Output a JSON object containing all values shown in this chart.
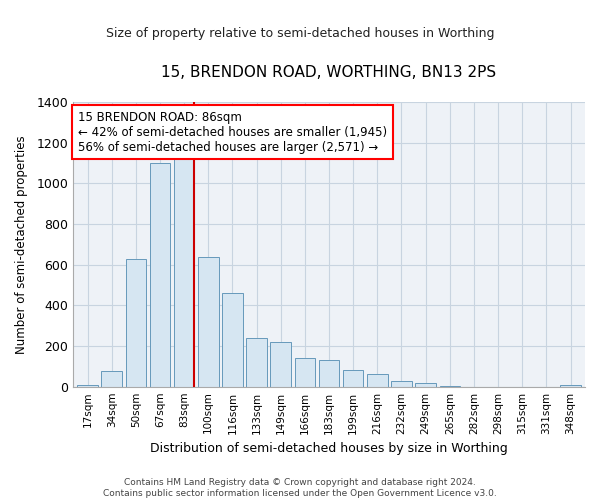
{
  "title": "15, BRENDON ROAD, WORTHING, BN13 2PS",
  "subtitle": "Size of property relative to semi-detached houses in Worthing",
  "xlabel": "Distribution of semi-detached houses by size in Worthing",
  "ylabel": "Number of semi-detached properties",
  "footer_line1": "Contains HM Land Registry data © Crown copyright and database right 2024.",
  "footer_line2": "Contains public sector information licensed under the Open Government Licence v3.0.",
  "property_label": "15 BRENDON ROAD: 86sqm",
  "annotation_line1": "← 42% of semi-detached houses are smaller (1,945)",
  "annotation_line2": "56% of semi-detached houses are larger (2,571) →",
  "bar_color": "#d6e6f2",
  "bar_edge_color": "#6699bb",
  "marker_color": "#cc0000",
  "categories": [
    "17sqm",
    "34sqm",
    "50sqm",
    "67sqm",
    "83sqm",
    "100sqm",
    "116sqm",
    "133sqm",
    "149sqm",
    "166sqm",
    "183sqm",
    "199sqm",
    "216sqm",
    "232sqm",
    "249sqm",
    "265sqm",
    "282sqm",
    "298sqm",
    "315sqm",
    "331sqm",
    "348sqm"
  ],
  "values": [
    10,
    75,
    630,
    1100,
    1130,
    640,
    460,
    240,
    220,
    140,
    130,
    80,
    60,
    30,
    20,
    5,
    0,
    0,
    0,
    0,
    10
  ],
  "ylim": [
    0,
    1400
  ],
  "yticks": [
    0,
    200,
    400,
    600,
    800,
    1000,
    1200,
    1400
  ],
  "marker_bin_index": 4,
  "background_color": "#ffffff",
  "plot_background": "#eef2f7",
  "grid_color": "#c8d4e0"
}
